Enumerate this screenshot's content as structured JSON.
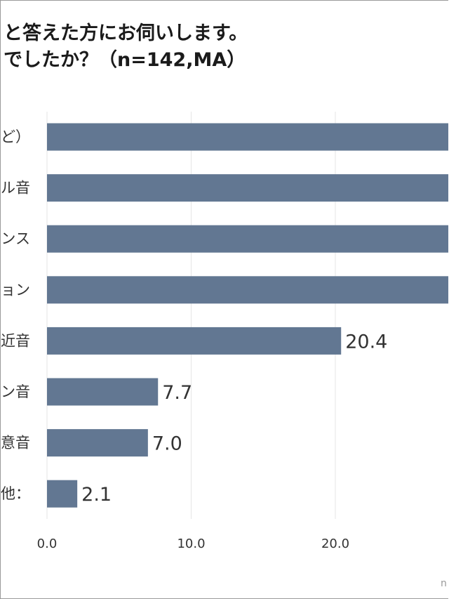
{
  "title_lines": [
    "と答えた方にお伺いします。",
    "でしたか？（n=142,MA）"
  ],
  "source_text": "n",
  "colors": {
    "bar": "#627792",
    "grid": "#e6e6e6",
    "text": "#333333"
  },
  "chart_data": {
    "type": "bar",
    "orientation": "horizontal",
    "categories": [
      "ど）",
      "ル音",
      "ンス",
      "ョン",
      "近音",
      "ン音",
      "意音",
      "他："
    ],
    "values": [
      null,
      null,
      null,
      null,
      20.4,
      7.7,
      7.0,
      2.1
    ],
    "value_labels": [
      "",
      "",
      "",
      "",
      "20.4",
      "7.7",
      "7.0",
      "2.1"
    ],
    "x_ticks": [
      "0.0",
      "10.0",
      "20.0"
    ],
    "xlim": [
      0,
      28.5
    ],
    "grid": true,
    "legend": "none"
  }
}
